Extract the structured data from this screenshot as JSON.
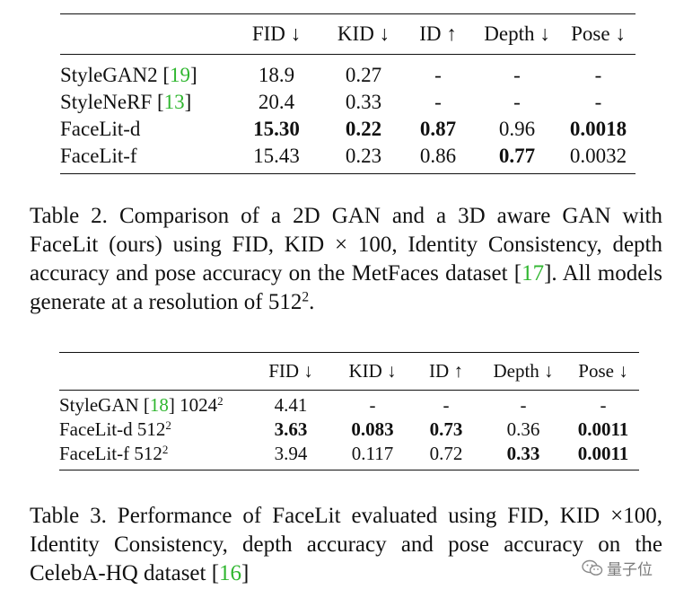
{
  "table2": {
    "headers": [
      "",
      "FID ↓",
      "KID ↓",
      "ID ↑",
      "Depth ↓",
      "Pose ↓"
    ],
    "rows": [
      {
        "name": "StyleGAN2 [",
        "cite": "19",
        "close": "]",
        "cells": [
          "18.9",
          "0.27",
          "-",
          "-",
          "-"
        ]
      },
      {
        "name": "StyleNeRF [",
        "cite": "13",
        "close": "]",
        "cells": [
          "20.4",
          "0.33",
          "-",
          "-",
          "-"
        ]
      },
      {
        "name": "FaceLit-d",
        "cite": "",
        "close": "",
        "cells": [
          "15.30",
          "0.22",
          "0.87",
          "0.96",
          "0.0018"
        ]
      },
      {
        "name": "FaceLit-f",
        "cite": "",
        "close": "",
        "cells": [
          "15.43",
          "0.23",
          "0.86",
          "0.77",
          "0.0032"
        ]
      }
    ]
  },
  "caption2": {
    "text_before": "Table 2.  Comparison of a 2D GAN and a 3D aware GAN with FaceLit (ours) using FID, KID × 100, Identity Consistency, depth accuracy and pose accuracy on the MetFaces dataset [",
    "cite": "17",
    "text_after": "].  All models generate at a resolution of 512",
    "sup": "2",
    "end": "."
  },
  "table3": {
    "headers": [
      "",
      "FID ↓",
      "KID ↓",
      "ID ↑",
      "Depth ↓",
      "Pose ↓"
    ],
    "rows": [
      {
        "name_before": "StyleGAN [",
        "cite": "18",
        "name_after": "] 1024",
        "sup": "2",
        "cells": [
          "4.41",
          "-",
          "-",
          "-",
          "-"
        ]
      },
      {
        "name_before": "FaceLit-d 512",
        "cite": "",
        "name_after": "",
        "sup": "2",
        "cells": [
          "3.63",
          "0.083",
          "0.73",
          "0.36",
          "0.0011"
        ]
      },
      {
        "name_before": "FaceLit-f 512",
        "cite": "",
        "name_after": "",
        "sup": "2",
        "cells": [
          "3.94",
          "0.117",
          "0.72",
          "0.33",
          "0.0011"
        ]
      }
    ]
  },
  "caption3": {
    "text_before": "Table 3. Performance of FaceLit evaluated using FID, KID ×100, Identity Consistency, depth accuracy and pose accuracy on the CelebA-HQ dataset [",
    "cite": "16",
    "text_after": "]"
  },
  "watermark": {
    "text": "量子位"
  },
  "colors": {
    "citation": "#2fb62f",
    "text": "#111111"
  }
}
